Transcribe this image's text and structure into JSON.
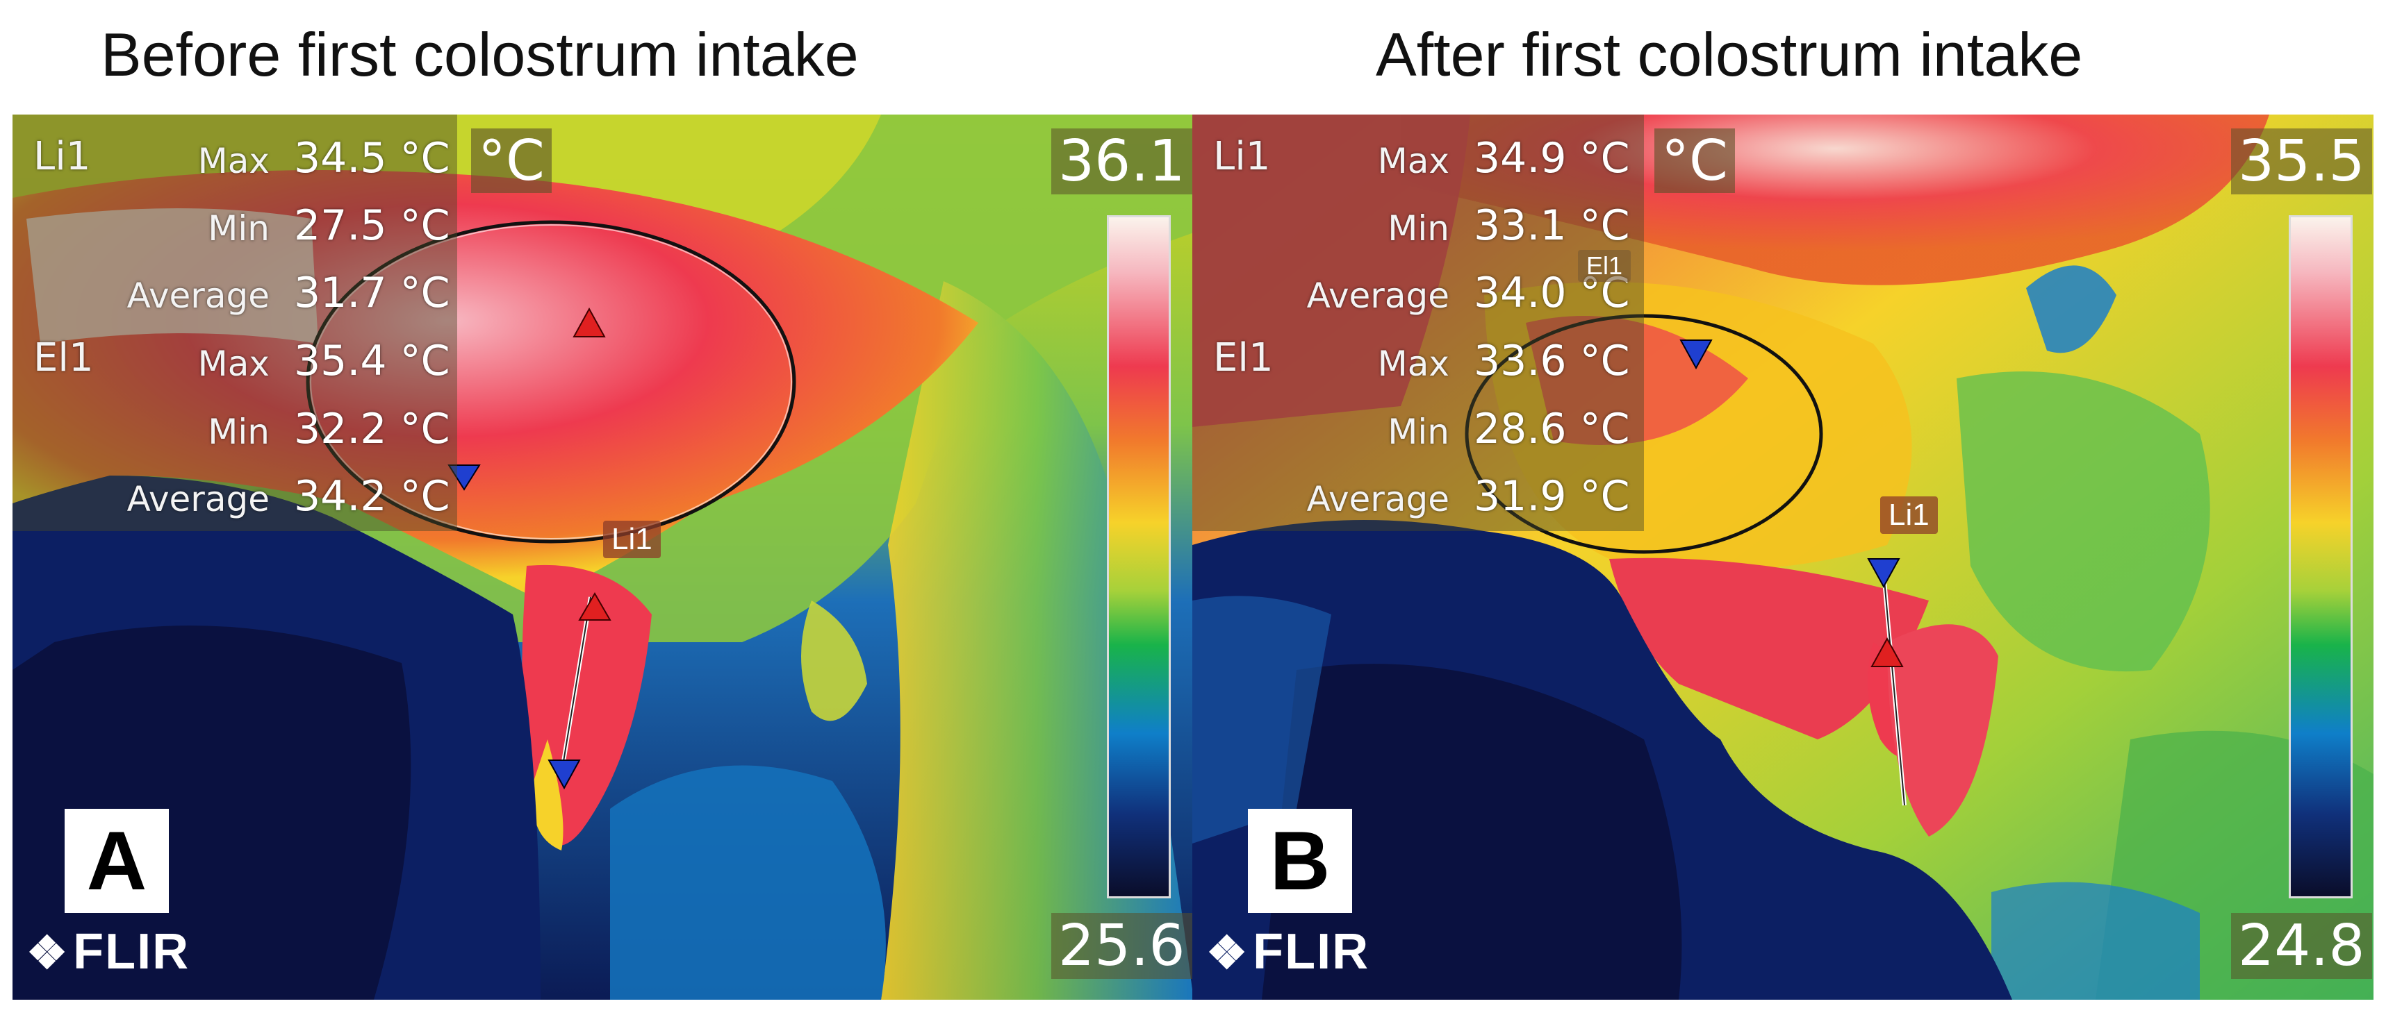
{
  "figure": {
    "panel_a": {
      "caption": "Before first colostrum intake",
      "letter": "A",
      "li1": {
        "name": "Li1",
        "max_label": "Max",
        "max": "34.5 °C",
        "min_label": "Min",
        "min": "27.5 °C",
        "avg_label": "Average",
        "avg": "31.7 °C"
      },
      "el1": {
        "name": "El1",
        "max_label": "Max",
        "max": "35.4 °C",
        "min_label": "Min",
        "min": "32.2 °C",
        "avg_label": "Average",
        "avg": "34.2 °C"
      },
      "unit": "°C",
      "scale_max": "36.1",
      "scale_min": "25.6",
      "line_tag": "Li1",
      "logo": "FLIR"
    },
    "panel_b": {
      "caption": "After first colostrum intake",
      "letter": "B",
      "li1": {
        "name": "Li1",
        "max_label": "Max",
        "max": "34.9 °C",
        "min_label": "Min",
        "min": "33.1 °C",
        "avg_label": "Average",
        "avg": "34.0 °C"
      },
      "el1": {
        "name": "El1",
        "max_label": "Max",
        "max": "33.6 °C",
        "min_label": "Min",
        "min": "28.6 °C",
        "avg_label": "Average",
        "avg": "31.9 °C"
      },
      "unit": "°C",
      "scale_max": "35.5",
      "scale_min": "24.8",
      "line_tag": "Li1",
      "ellipse_tag": "El1",
      "logo": "FLIR"
    }
  },
  "colors": {
    "hot": "#ee3a4f",
    "warm": "#f6d22a",
    "mid": "#19b34a",
    "cool": "#0f7fc9",
    "cold": "#0a0d2a",
    "marker_max": "#e02020",
    "marker_min": "#1f3fd0"
  }
}
